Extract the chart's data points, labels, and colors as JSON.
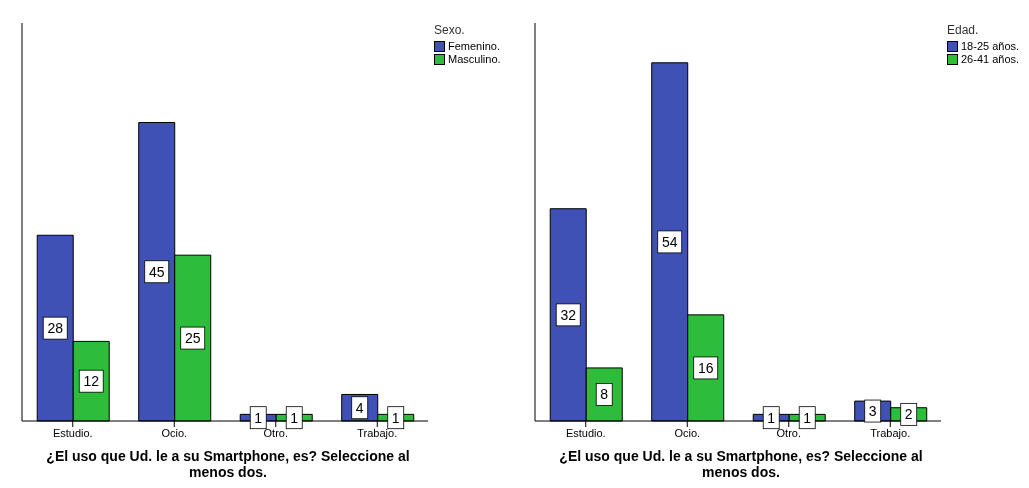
{
  "chart_data": [
    {
      "type": "bar",
      "xlabel": "¿El uso que Ud. le a su Smartphone, es? Seleccione al menos dos.",
      "legend_title": "Sexo.",
      "categories": [
        "Estudio.",
        "Ocio.",
        "Otro.",
        "Trabajo."
      ],
      "series": [
        {
          "name": "Femenino.",
          "color": "#3f51b5",
          "values": [
            28,
            45,
            1,
            4
          ]
        },
        {
          "name": "Masculino.",
          "color": "#2ebd3a",
          "values": [
            12,
            25,
            1,
            1
          ]
        }
      ],
      "tick_labels": "x",
      "data_labels": true,
      "legend": "top right"
    },
    {
      "type": "bar",
      "xlabel": "¿El uso que Ud. le a su Smartphone, es? Seleccione al menos dos.",
      "legend_title": "Edad.",
      "categories": [
        "Estudio.",
        "Ocio.",
        "Otro.",
        "Trabajo."
      ],
      "series": [
        {
          "name": "18-25 años.",
          "color": "#3f51b5",
          "values": [
            32,
            54,
            1,
            3
          ]
        },
        {
          "name": "26-41 años.",
          "color": "#2ebd3a",
          "values": [
            8,
            16,
            1,
            2
          ]
        }
      ],
      "tick_labels": "x",
      "data_labels": true,
      "legend": "top right"
    }
  ]
}
